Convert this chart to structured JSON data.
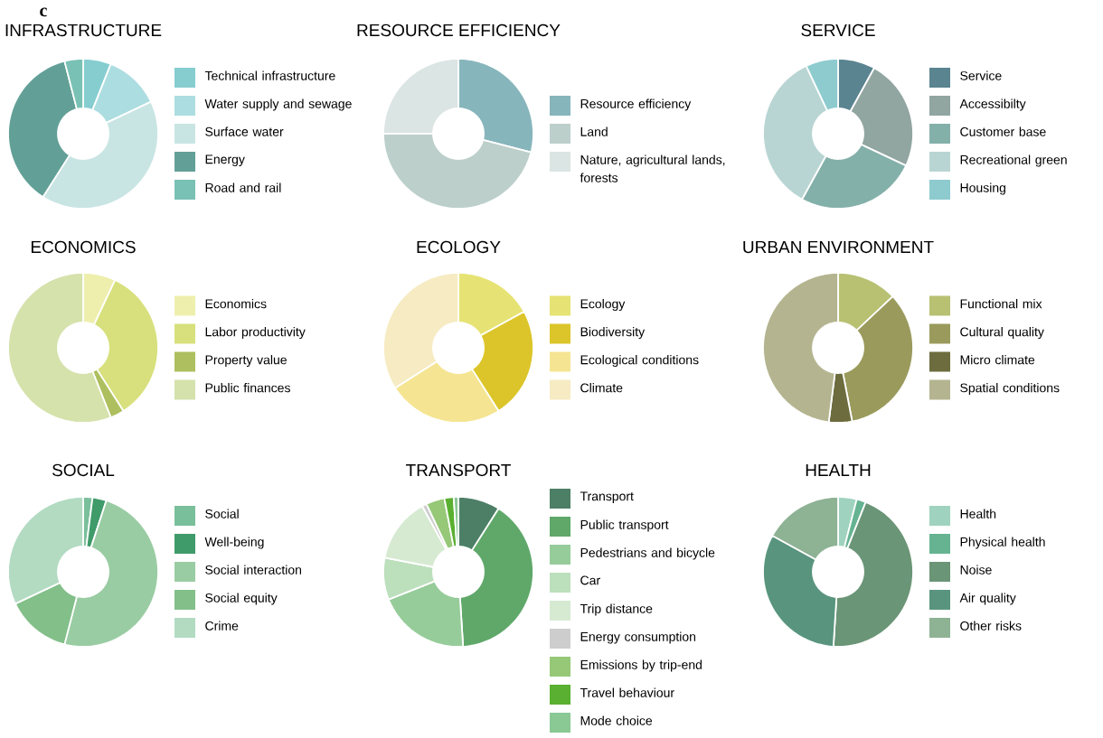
{
  "chart_data": [
    {
      "type": "donut",
      "title": "INFRASTRUCTURE",
      "annotations": [
        "c"
      ],
      "legend": "right",
      "categories": [
        "Technical infrastructure",
        "Water supply and sewage",
        "Surface water",
        "Energy",
        "Road and rail"
      ],
      "values": [
        6,
        12,
        41,
        37,
        4
      ],
      "colors": [
        "#86cdd0",
        "#acdde0",
        "#c8e5e3",
        "#62a097",
        "#79c1b4"
      ]
    },
    {
      "type": "donut",
      "title": "RESOURCE EFFICIENCY",
      "legend": "right",
      "categories": [
        "Resource efficiency",
        "Land",
        "Nature, agricultural lands, forests"
      ],
      "values": [
        29,
        46,
        25
      ],
      "colors": [
        "#87b5bc",
        "#bccfcb",
        "#dbe5e3"
      ]
    },
    {
      "type": "donut",
      "title": "SERVICE",
      "legend": "right",
      "categories": [
        "Service",
        "Accessibilty",
        "Customer base",
        "Recreational green",
        "Housing"
      ],
      "values": [
        8,
        24,
        26,
        35,
        7
      ],
      "colors": [
        "#5a8490",
        "#91a5a1",
        "#84b0aa",
        "#b9d5d3",
        "#8ecbcf"
      ]
    },
    {
      "type": "donut",
      "title": "ECONOMICS",
      "legend": "right",
      "categories": [
        "Economics",
        "Labor productivity",
        "Property value",
        "Public finances"
      ],
      "values": [
        7,
        34,
        3,
        56
      ],
      "colors": [
        "#eeefad",
        "#d7e07c",
        "#adbf5e",
        "#d5e2ac"
      ]
    },
    {
      "type": "donut",
      "title": "ECOLOGY",
      "legend": "right",
      "categories": [
        "Ecology",
        "Biodiversity",
        "Ecological conditions",
        "Climate"
      ],
      "values": [
        17,
        24,
        25,
        34
      ],
      "colors": [
        "#e6e374",
        "#dcc52a",
        "#f5e592",
        "#f6ebc2"
      ]
    },
    {
      "type": "donut",
      "title": "URBAN ENVIRONMENT",
      "legend": "right",
      "categories": [
        "Functional mix",
        "Cultural quality",
        "Micro climate",
        "Spatial conditions"
      ],
      "values": [
        13,
        34,
        5,
        48
      ],
      "colors": [
        "#b8c072",
        "#9a9a5c",
        "#6c6c3e",
        "#b4b590"
      ]
    },
    {
      "type": "donut",
      "title": "SOCIAL",
      "legend": "right",
      "categories": [
        "Social",
        "Well-being",
        "Social interaction",
        "Social equity",
        "Crime"
      ],
      "values": [
        2,
        3,
        49,
        14,
        32
      ],
      "colors": [
        "#79bf9b",
        "#3f9b6a",
        "#9acca3",
        "#82bf89",
        "#b2dbc2"
      ]
    },
    {
      "type": "donut",
      "title": "TRANSPORT",
      "legend": "right",
      "categories": [
        "Transport",
        "Public transport",
        "Pedestrians and bicycle",
        "Car",
        "Trip distance",
        "Energy consumption",
        "Emissions by trip-end",
        "Travel behaviour",
        "Mode choice"
      ],
      "values": [
        9,
        40,
        20,
        9,
        14,
        1,
        4,
        2,
        1
      ],
      "colors": [
        "#4d7f67",
        "#5fa86a",
        "#96cc9a",
        "#bcdfbc",
        "#d6ead2",
        "#cdcdcd",
        "#96c878",
        "#5ab030",
        "#8ac894"
      ]
    },
    {
      "type": "donut",
      "title": "HEALTH",
      "legend": "right",
      "categories": [
        "Health",
        "Physical health",
        "Noise",
        "Air quality",
        "Other risks"
      ],
      "values": [
        4,
        2,
        45,
        32,
        17
      ],
      "colors": [
        "#9fd3bf",
        "#66b392",
        "#6a9576",
        "#59957e",
        "#8db294"
      ]
    }
  ]
}
